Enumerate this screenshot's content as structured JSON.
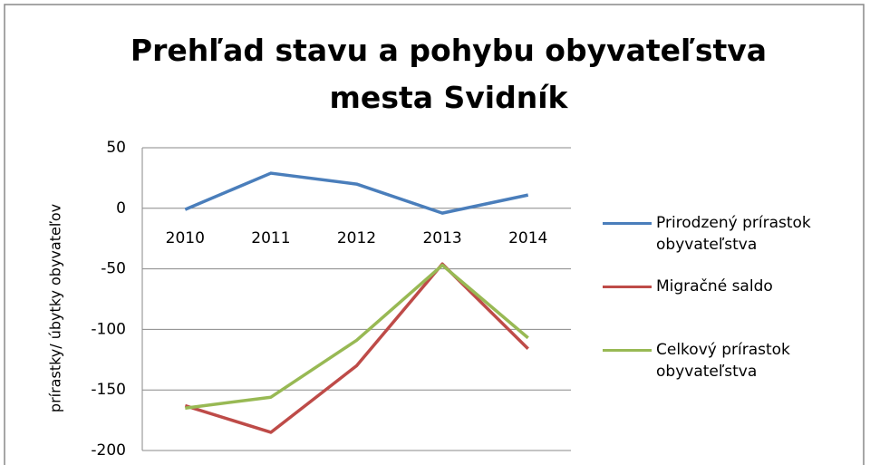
{
  "chart_data": {
    "type": "line",
    "title": "Prehľad stavu a pohybu obyvateľstva mesta Svidník",
    "y_label": "prírastky/ úbytky obyvateľov",
    "categories": [
      "2010",
      "2011",
      "2012",
      "2013",
      "2014"
    ],
    "series": [
      {
        "name": "Prirodzený prírastok obyvateľstva",
        "color": "#4a7ebb",
        "values": [
          -1,
          29,
          20,
          -4,
          11
        ]
      },
      {
        "name": "Migračné saldo",
        "color": "#be4b48",
        "values": [
          -163,
          -185,
          -130,
          -46,
          -116
        ]
      },
      {
        "name": "Celkový prírastok obyvateľstva",
        "color": "#98b954",
        "values": [
          -165,
          -156,
          -109,
          -47,
          -107
        ]
      }
    ],
    "ylim": [
      -200,
      50
    ],
    "yticks": [
      -200,
      -150,
      -100,
      -50,
      0,
      50
    ],
    "grid": true,
    "legend": "right"
  }
}
